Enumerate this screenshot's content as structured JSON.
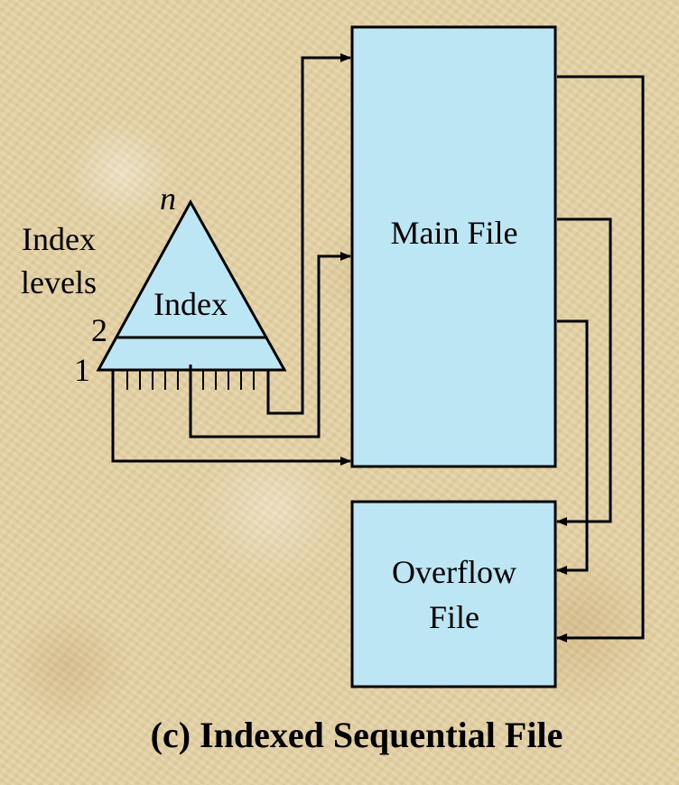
{
  "diagram": {
    "labels": {
      "index_levels_line1": "Index",
      "index_levels_line2": "levels",
      "level_n": "n",
      "level_2": "2",
      "level_1": "1",
      "index": "Index",
      "main_file": "Main File",
      "overflow_line1": "Overflow",
      "overflow_line2": "File"
    },
    "caption": "(c) Indexed Sequential File",
    "colors": {
      "box_fill": "#bde6f5",
      "stroke": "#000000"
    }
  }
}
